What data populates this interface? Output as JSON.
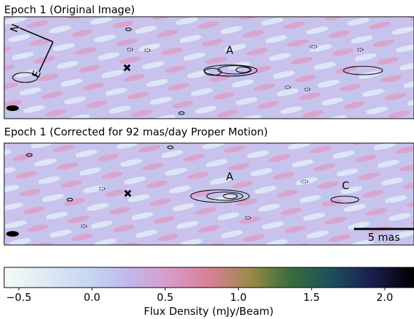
{
  "panels": [
    {
      "title": "Epoch 1 (Original Image)",
      "labels": [
        "A",
        "N",
        "E"
      ]
    },
    {
      "title": "Epoch 1 (Corrected for 92 mas/day Proper Motion)",
      "labels": [
        "A",
        "C"
      ],
      "scalebar": "5 mas"
    }
  ],
  "colorbar": {
    "label": "Flux Density (mJy/Beam)",
    "lim": [
      -0.6,
      2.2
    ],
    "ticks": [
      {
        "value": -0.5,
        "label": "−0.5"
      },
      {
        "value": 0.0,
        "label": "0.0"
      },
      {
        "value": 0.5,
        "label": "0.5"
      },
      {
        "value": 1.0,
        "label": "1.0"
      },
      {
        "value": 1.5,
        "label": "1.5"
      },
      {
        "value": 2.0,
        "label": "2.0"
      }
    ]
  }
}
